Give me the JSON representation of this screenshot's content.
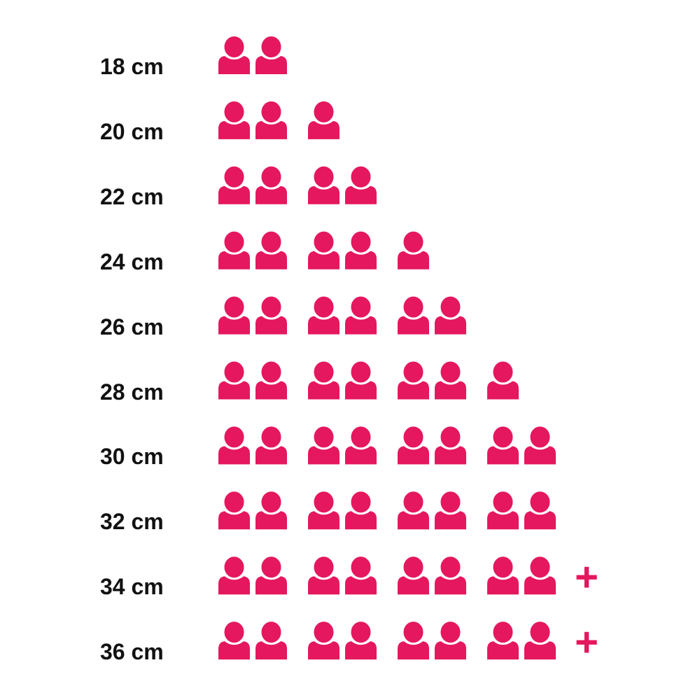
{
  "chart_data": {
    "type": "pictogram",
    "icon": "person-icon",
    "color": "#e5175e",
    "rows": [
      {
        "label": "18 cm",
        "count": 2,
        "more": false
      },
      {
        "label": "20 cm",
        "count": 3,
        "more": false
      },
      {
        "label": "22 cm",
        "count": 4,
        "more": false
      },
      {
        "label": "24 cm",
        "count": 5,
        "more": false
      },
      {
        "label": "26 cm",
        "count": 6,
        "more": false
      },
      {
        "label": "28 cm",
        "count": 7,
        "more": false
      },
      {
        "label": "30 cm",
        "count": 8,
        "more": false
      },
      {
        "label": "32 cm",
        "count": 8,
        "more": false
      },
      {
        "label": "34 cm",
        "count": 8,
        "more": true
      },
      {
        "label": "36 cm",
        "count": 8,
        "more": true
      }
    ],
    "more_symbol": "+"
  }
}
